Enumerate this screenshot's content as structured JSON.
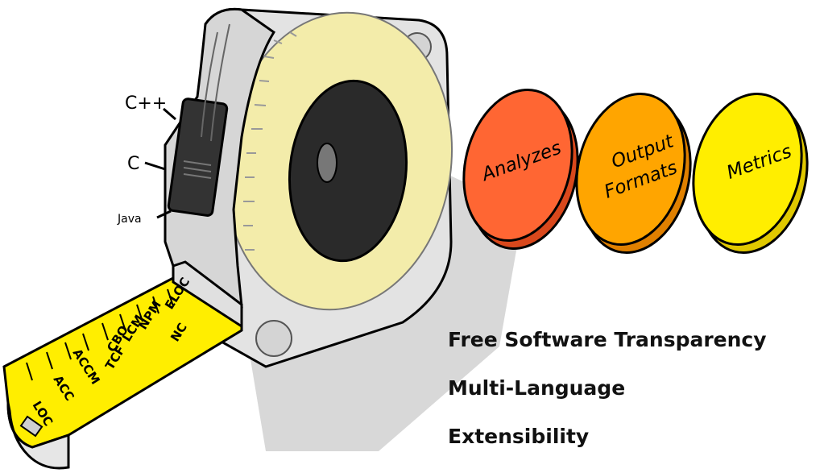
{
  "languages": [
    "C++",
    "C",
    "Java"
  ],
  "metrics_on_tape": [
    "LOC",
    "ACC",
    "ACCM",
    "TCF",
    "CBO",
    "LCM",
    "NPM",
    "NC",
    "ELOC"
  ],
  "discs": [
    {
      "lines": [
        "Analyzes"
      ],
      "color": "#ff6633",
      "edge": "#d9481c"
    },
    {
      "lines": [
        "Output",
        "Formats"
      ],
      "color": "#ffa500",
      "edge": "#e08000"
    },
    {
      "lines": [
        "Metrics"
      ],
      "color": "#ffee00",
      "edge": "#e0c800"
    }
  ],
  "features": [
    "Free Software Transparency",
    "Multi-Language",
    "Extensibility"
  ]
}
